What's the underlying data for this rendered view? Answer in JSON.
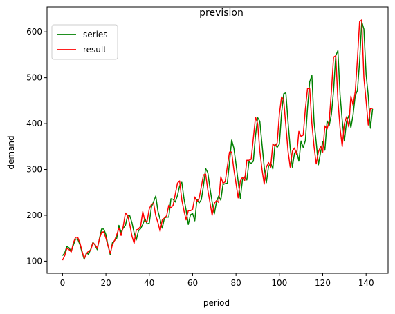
{
  "chart_data": {
    "type": "line",
    "title": "prevision",
    "xlabel": "period",
    "ylabel": "demand",
    "xlim": [
      -7.15,
      150.15
    ],
    "ylim": [
      73.5,
      654.5
    ],
    "xticks": [
      0,
      20,
      40,
      60,
      80,
      100,
      120,
      140
    ],
    "yticks": [
      100,
      200,
      300,
      400,
      500,
      600
    ],
    "grid": false,
    "legend_position": "top-left",
    "series": [
      {
        "name": "series",
        "color": "#008000",
        "x": [
          0,
          1,
          2,
          3,
          4,
          5,
          6,
          7,
          8,
          9,
          10,
          11,
          12,
          13,
          14,
          15,
          16,
          17,
          18,
          19,
          20,
          21,
          22,
          23,
          24,
          25,
          26,
          27,
          28,
          29,
          30,
          31,
          32,
          33,
          34,
          35,
          36,
          37,
          38,
          39,
          40,
          41,
          42,
          43,
          44,
          45,
          46,
          47,
          48,
          49,
          50,
          51,
          52,
          53,
          54,
          55,
          56,
          57,
          58,
          59,
          60,
          61,
          62,
          63,
          64,
          65,
          66,
          67,
          68,
          69,
          70,
          71,
          72,
          73,
          74,
          75,
          76,
          77,
          78,
          79,
          80,
          81,
          82,
          83,
          84,
          85,
          86,
          87,
          88,
          89,
          90,
          91,
          92,
          93,
          94,
          95,
          96,
          97,
          98,
          99,
          100,
          101,
          102,
          103,
          104,
          105,
          106,
          107,
          108,
          109,
          110,
          111,
          112,
          113,
          114,
          115,
          116,
          117,
          118,
          119,
          120,
          121,
          122,
          123,
          124,
          125,
          126,
          127,
          128,
          129,
          130,
          131,
          132,
          133,
          134,
          135,
          136,
          137,
          138,
          139,
          140,
          141,
          142,
          143
        ],
        "y": [
          112,
          118,
          132,
          129,
          121,
          135,
          148,
          148,
          136,
          119,
          104,
          118,
          115,
          126,
          141,
          135,
          125,
          149,
          170,
          170,
          158,
          133,
          114,
          140,
          145,
          150,
          178,
          163,
          172,
          178,
          199,
          199,
          184,
          162,
          146,
          166,
          171,
          180,
          193,
          181,
          183,
          218,
          230,
          242,
          209,
          191,
          172,
          194,
          196,
          196,
          236,
          235,
          229,
          243,
          264,
          272,
          237,
          211,
          180,
          201,
          204,
          188,
          235,
          227,
          234,
          264,
          302,
          293,
          259,
          229,
          203,
          229,
          242,
          233,
          267,
          269,
          270,
          315,
          364,
          347,
          312,
          274,
          237,
          278,
          284,
          277,
          317,
          313,
          318,
          374,
          413,
          405,
          355,
          306,
          271,
          306,
          315,
          301,
          356,
          348,
          355,
          422,
          465,
          467,
          404,
          347,
          305,
          336,
          340,
          318,
          362,
          348,
          363,
          435,
          491,
          505,
          404,
          359,
          310,
          337,
          360,
          342,
          406,
          396,
          420,
          472,
          548,
          559,
          463,
          407,
          362,
          405,
          417,
          391,
          419,
          461,
          472,
          535,
          622,
          606,
          508,
          461,
          390,
          432
        ]
      },
      {
        "name": "result",
        "color": "#ff0000",
        "x": [
          0,
          1,
          2,
          3,
          4,
          5,
          6,
          7,
          8,
          9,
          10,
          11,
          12,
          13,
          14,
          15,
          16,
          17,
          18,
          19,
          20,
          21,
          22,
          23,
          24,
          25,
          26,
          27,
          28,
          29,
          30,
          31,
          32,
          33,
          34,
          35,
          36,
          37,
          38,
          39,
          40,
          41,
          42,
          43,
          44,
          45,
          46,
          47,
          48,
          49,
          50,
          51,
          52,
          53,
          54,
          55,
          56,
          57,
          58,
          59,
          60,
          61,
          62,
          63,
          64,
          65,
          66,
          67,
          68,
          69,
          70,
          71,
          72,
          73,
          74,
          75,
          76,
          77,
          78,
          79,
          80,
          81,
          82,
          83,
          84,
          85,
          86,
          87,
          88,
          89,
          90,
          91,
          92,
          93,
          94,
          95,
          96,
          97,
          98,
          99,
          100,
          101,
          102,
          103,
          104,
          105,
          106,
          107,
          108,
          109,
          110,
          111,
          112,
          113,
          114,
          115,
          116,
          117,
          118,
          119,
          120,
          121,
          122,
          123,
          124,
          125,
          126,
          127,
          128,
          129,
          130,
          131,
          132,
          133,
          134,
          135,
          136,
          137,
          138,
          139,
          140,
          141,
          142,
          143
        ],
        "y": [
          102,
          112,
          128,
          125,
          120,
          140,
          152,
          152,
          140,
          122,
          106,
          116,
          122,
          124,
          140,
          136,
          128,
          148,
          163,
          164,
          150,
          133,
          117,
          136,
          145,
          158,
          172,
          156,
          176,
          205,
          200,
          180,
          155,
          139,
          168,
          170,
          176,
          208,
          187,
          187,
          214,
          224,
          226,
          199,
          184,
          165,
          190,
          194,
          199,
          222,
          216,
          222,
          246,
          270,
          275,
          234,
          210,
          190,
          210,
          210,
          213,
          240,
          230,
          237,
          262,
          288,
          290,
          255,
          228,
          200,
          226,
          232,
          228,
          284,
          270,
          273,
          306,
          338,
          338,
          300,
          270,
          238,
          275,
          283,
          275,
          320,
          320,
          322,
          368,
          414,
          400,
          340,
          300,
          268,
          305,
          315,
          305,
          356,
          350,
          358,
          420,
          458,
          452,
          395,
          340,
          305,
          340,
          347,
          332,
          383,
          372,
          375,
          432,
          477,
          476,
          400,
          350,
          312,
          338,
          350,
          338,
          395,
          388,
          406,
          470,
          545,
          548,
          452,
          390,
          350,
          400,
          415,
          393,
          460,
          440,
          470,
          540,
          622,
          626,
          500,
          450,
          397,
          433,
          433
        ]
      }
    ]
  }
}
